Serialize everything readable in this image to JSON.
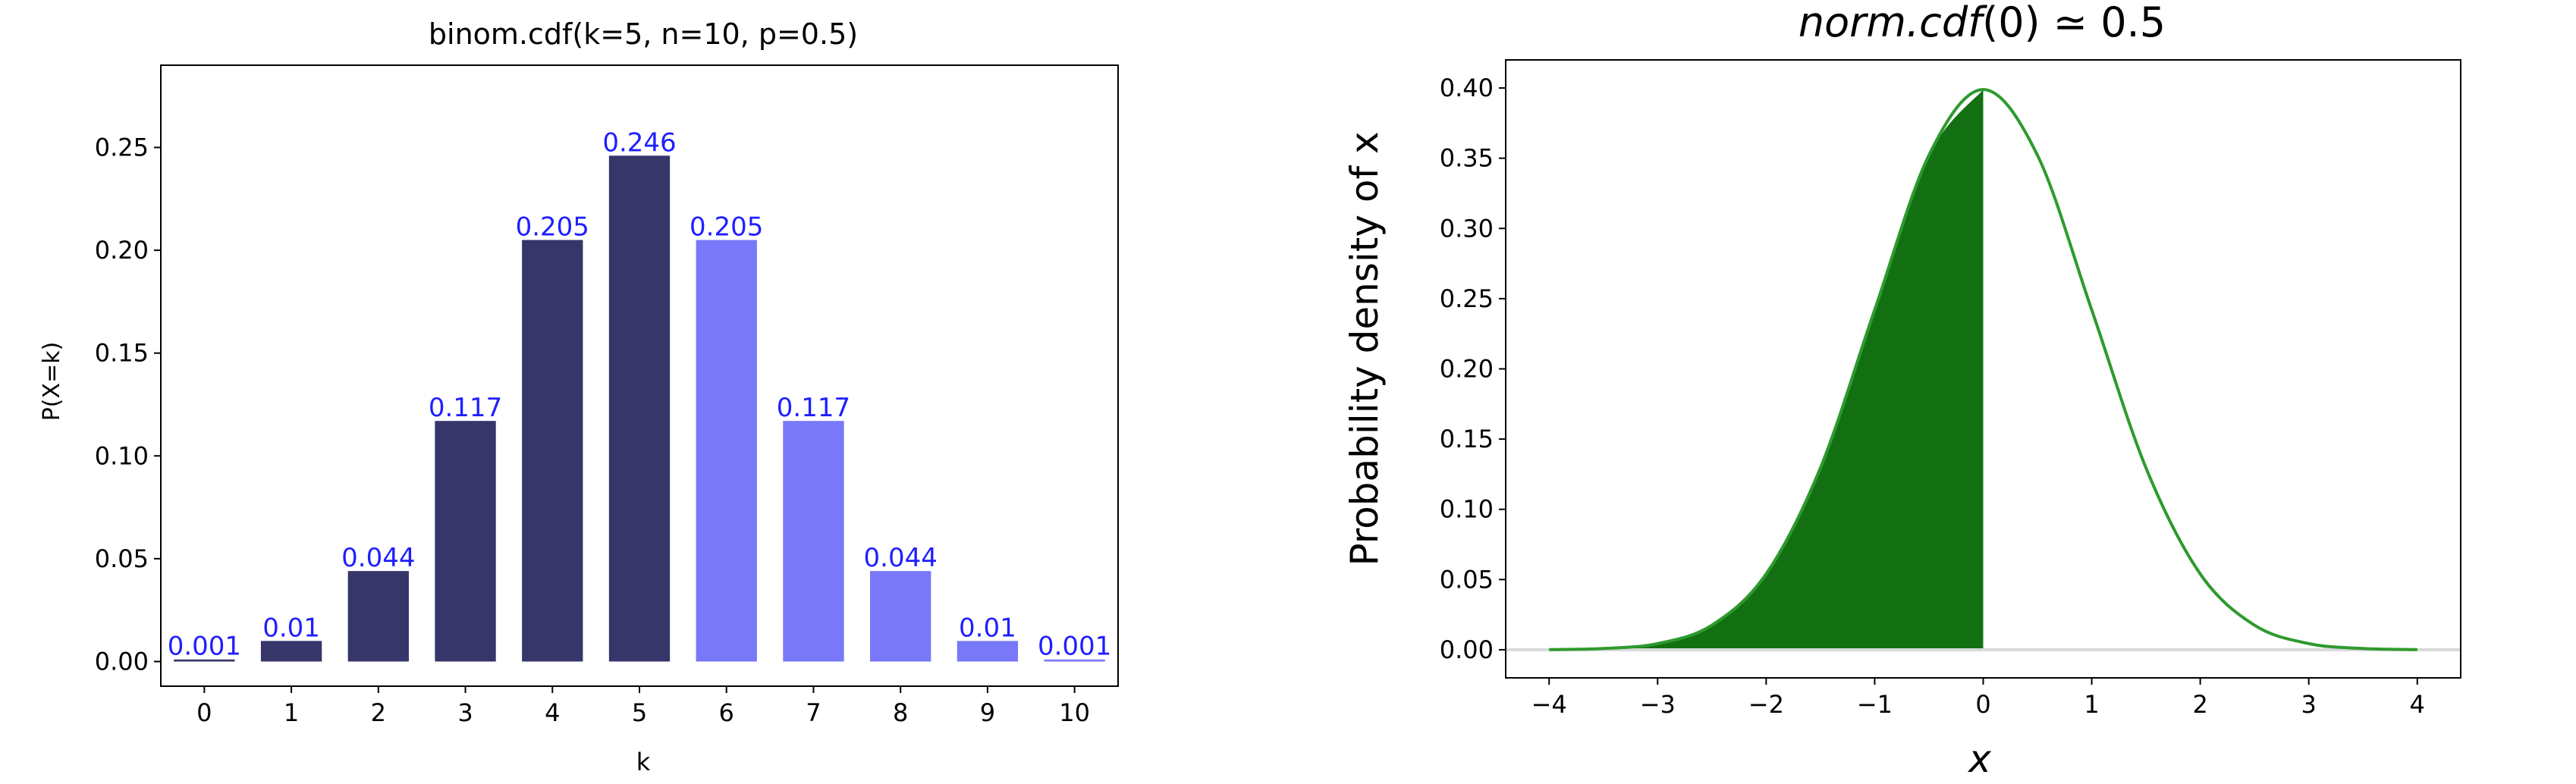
{
  "chart_data": [
    {
      "type": "bar",
      "title": "binom.cdf(k=5, n=10, p=0.5)",
      "xlabel": "k",
      "ylabel": "P(X=k)",
      "ylim": [
        -0.012,
        0.29
      ],
      "yticks": [
        "0.00",
        "0.05",
        "0.10",
        "0.15",
        "0.20",
        "0.25"
      ],
      "categories": [
        "0",
        "1",
        "2",
        "3",
        "4",
        "5",
        "6",
        "7",
        "8",
        "9",
        "10"
      ],
      "values": [
        0.001,
        0.01,
        0.044,
        0.117,
        0.205,
        0.246,
        0.205,
        0.117,
        0.044,
        0.01,
        0.001
      ],
      "data_labels": [
        "0.001",
        "0.01",
        "0.044",
        "0.117",
        "0.205",
        "0.246",
        "0.205",
        "0.117",
        "0.044",
        "0.01",
        "0.001"
      ],
      "highlight_through_k": 5,
      "colors": {
        "highlight": "#36366b",
        "rest": "#7878f9",
        "label": "#1f1fff"
      },
      "grid": false,
      "legend": "none"
    },
    {
      "type": "area",
      "title": "norm.cdf(0) ≃ 0.5",
      "title_parts": {
        "func": "norm.cdf",
        "arg": "(0)",
        "approx": " ≃ 0.5"
      },
      "xlabel": "x",
      "ylabel": "Probability density of x",
      "xlim": [
        -4.4,
        4.4
      ],
      "ylim": [
        -0.02,
        0.42
      ],
      "xticks": [
        "−4",
        "−3",
        "−2",
        "−1",
        "0",
        "1",
        "2",
        "3",
        "4"
      ],
      "yticks": [
        "0.00",
        "0.05",
        "0.10",
        "0.15",
        "0.20",
        "0.25",
        "0.30",
        "0.35",
        "0.40"
      ],
      "series": [
        {
          "x": [
            -4,
            -3.5,
            -3,
            -2.5,
            -2,
            -1.5,
            -1,
            -0.5,
            0,
            0.5,
            1,
            1.5,
            2,
            2.5,
            3,
            3.5,
            4
          ],
          "y": [
            0.0001,
            0.0009,
            0.0044,
            0.0175,
            0.054,
            0.1295,
            0.242,
            0.3521,
            0.3989,
            0.3521,
            0.242,
            0.1295,
            0.054,
            0.0175,
            0.0044,
            0.0009,
            0.0001
          ]
        }
      ],
      "shaded_region": [
        -4,
        0
      ],
      "colors": {
        "line": "#2e9a2e",
        "fill": "#127012",
        "baseline": "#d9d9d9"
      },
      "grid": false,
      "legend": "none"
    }
  ]
}
